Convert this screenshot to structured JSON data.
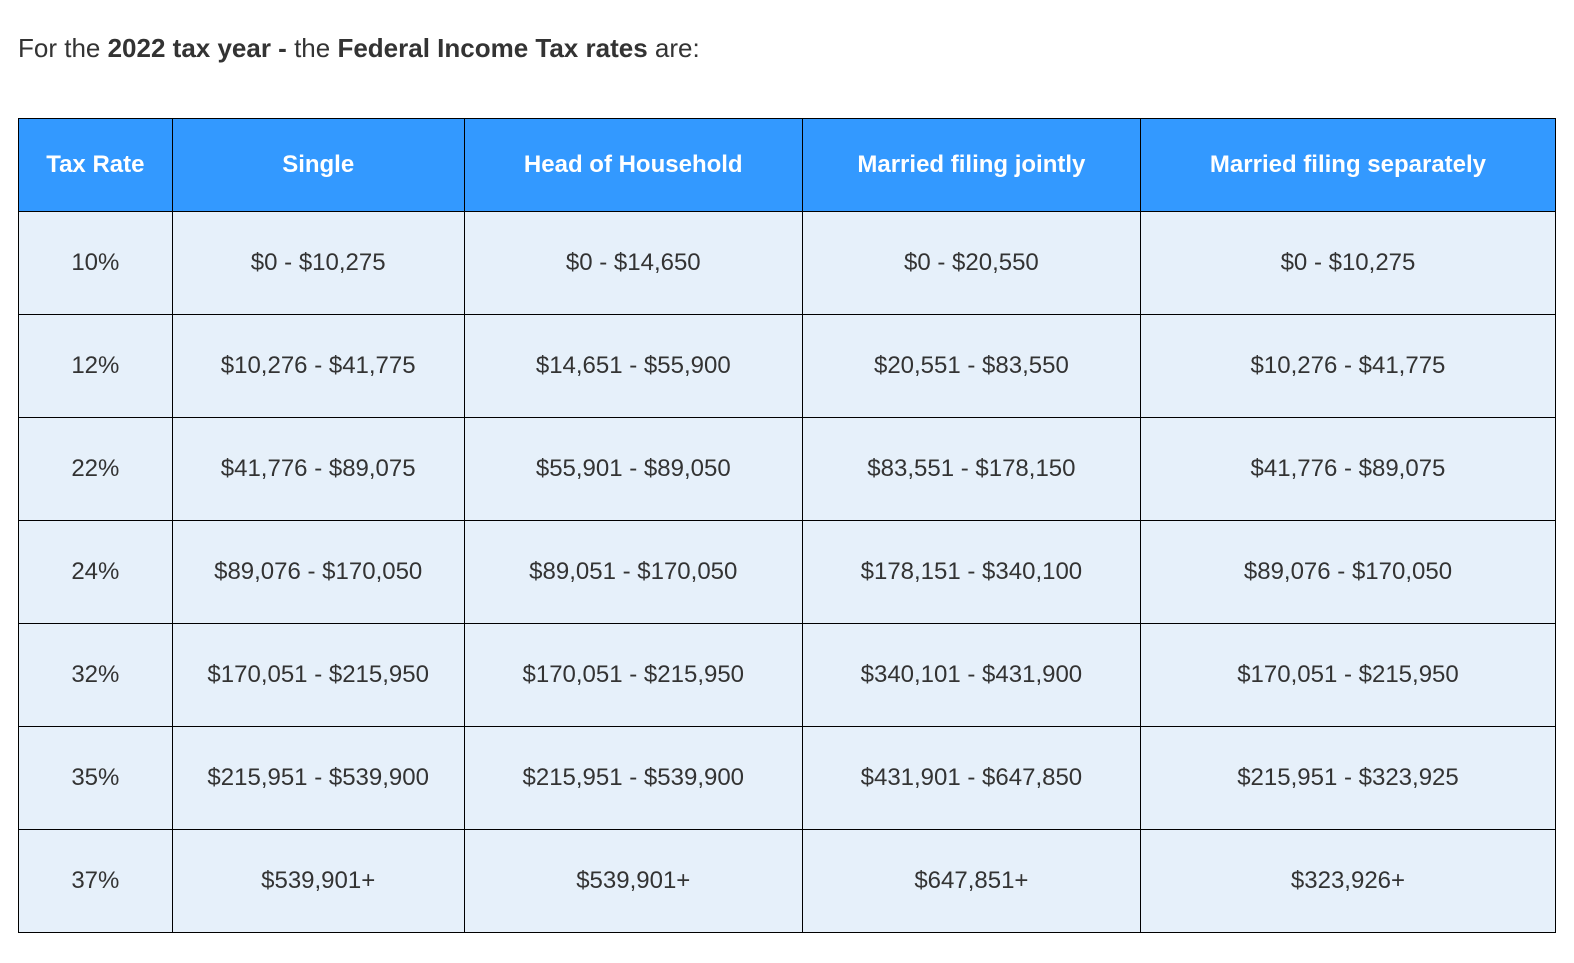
{
  "intro": {
    "prefix": "For the ",
    "bold1": "2022 tax year - ",
    "mid": "the ",
    "bold2": "Federal Income Tax rates",
    "suffix": " are:"
  },
  "colors": {
    "header_bg": "#3399ff",
    "header_fg": "#ffffff",
    "cell_bg": "#e6f0fa",
    "cell_fg": "#333333",
    "border": "#000000"
  },
  "table": {
    "columns": [
      "Tax Rate",
      "Single",
      "Head of Household",
      "Married filing jointly",
      "Married filing separately"
    ],
    "rows": [
      [
        "10%",
        "$0 - $10,275",
        "$0 - $14,650",
        "$0 - $20,550",
        "$0 - $10,275"
      ],
      [
        "12%",
        "$10,276 - $41,775",
        "$14,651 - $55,900",
        "$20,551 - $83,550",
        "$10,276 - $41,775"
      ],
      [
        "22%",
        "$41,776 - $89,075",
        "$55,901 - $89,050",
        "$83,551 - $178,150",
        "$41,776 - $89,075"
      ],
      [
        "24%",
        "$89,076 - $170,050",
        "$89,051 - $170,050",
        "$178,151 - $340,100",
        "$89,076 - $170,050"
      ],
      [
        "32%",
        "$170,051 - $215,950",
        "$170,051 - $215,950",
        "$340,101 - $431,900",
        "$170,051 - $215,950"
      ],
      [
        "35%",
        "$215,951 - $539,900",
        "$215,951 - $539,900",
        "$431,901 - $647,850",
        "$215,951 - $323,925"
      ],
      [
        "37%",
        "$539,901+",
        "$539,901+",
        "$647,851+",
        "$323,926+"
      ]
    ]
  }
}
